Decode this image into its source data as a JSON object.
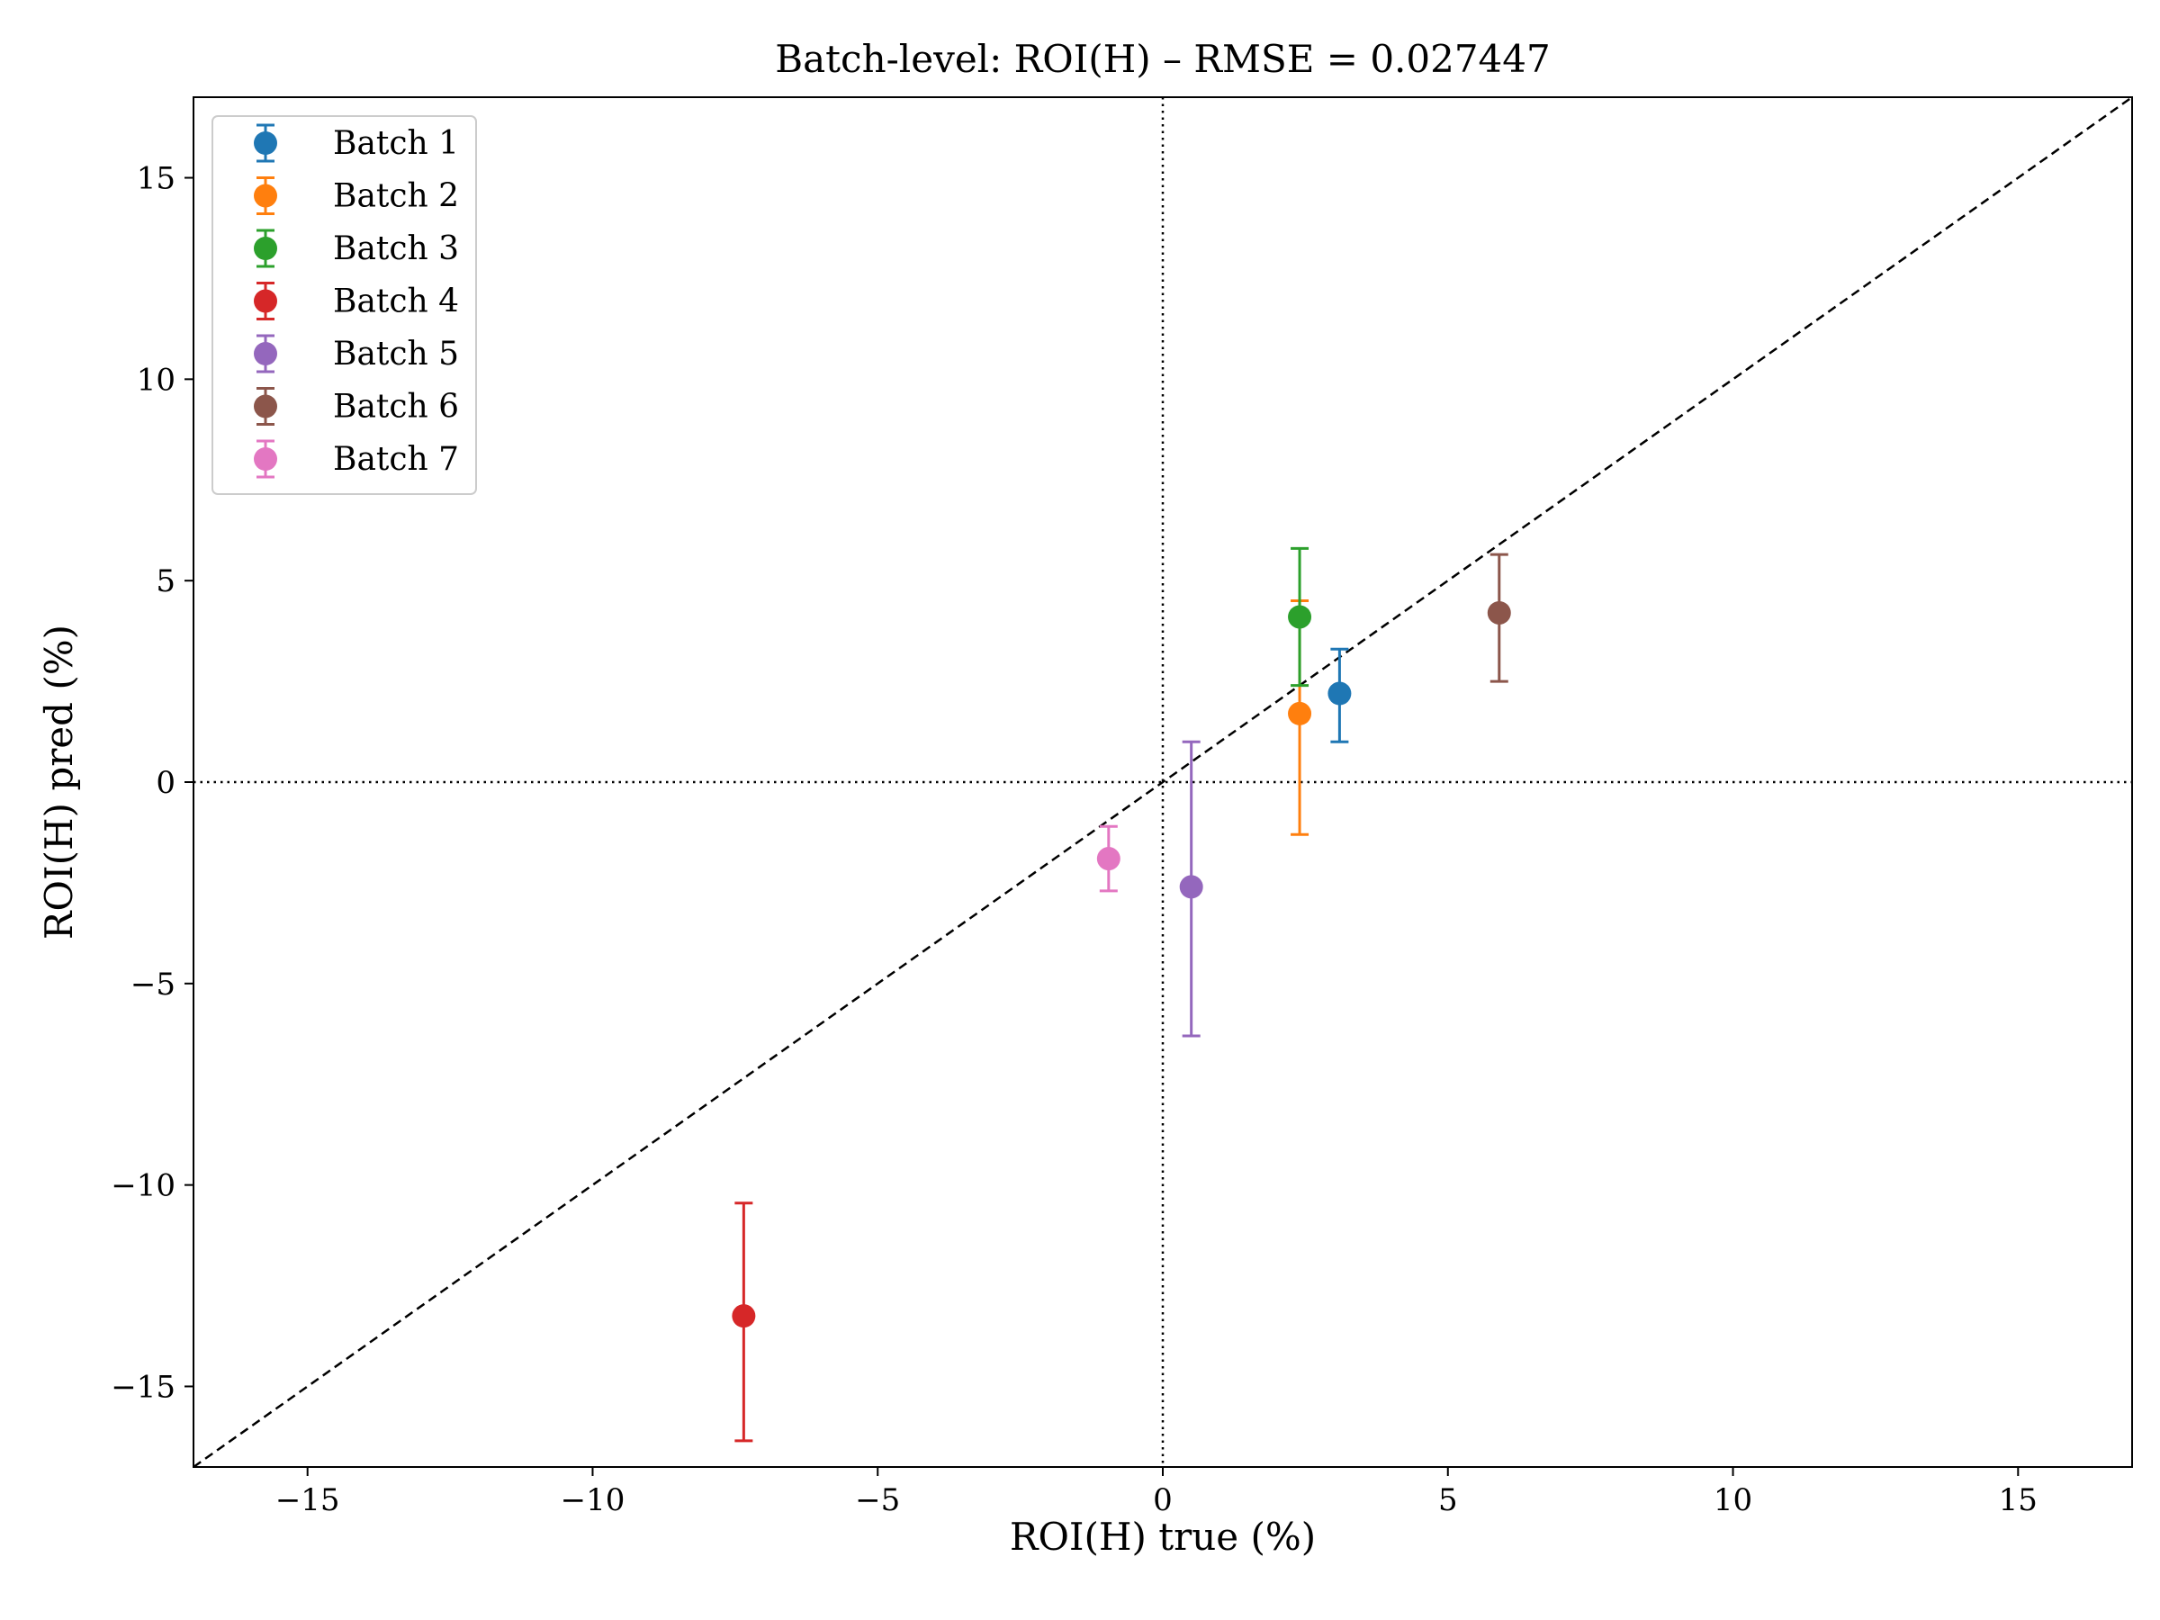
{
  "chart_data": {
    "type": "scatter",
    "title": "Batch-level: ROI(H) – RMSE = 0.027447",
    "xlabel": "ROI(H) true (%)",
    "ylabel": "ROI(H) pred (%)",
    "xlim": [
      -17,
      17
    ],
    "ylim": [
      -17,
      17
    ],
    "xticks": [
      -15,
      -10,
      -5,
      0,
      5,
      10,
      15
    ],
    "yticks": [
      -15,
      -10,
      -5,
      0,
      5,
      10,
      15
    ],
    "xtick_labels": [
      "−15",
      "−10",
      "−5",
      "0",
      "5",
      "10",
      "15"
    ],
    "ytick_labels": [
      "−15",
      "−10",
      "−5",
      "0",
      "5",
      "10",
      "15"
    ],
    "grid": false,
    "legend_position": "top-left",
    "reference_lines": [
      "y = x (dashed)",
      "x = 0 (dotted)",
      "y = 0 (dotted)"
    ],
    "series": [
      {
        "name": "Batch 1",
        "color": "#1f77b4",
        "x": 3.1,
        "y": 2.2,
        "err_low": 1.0,
        "err_high": 3.3
      },
      {
        "name": "Batch 2",
        "color": "#ff7f0e",
        "x": 2.4,
        "y": 1.7,
        "err_low": -1.3,
        "err_high": 4.5
      },
      {
        "name": "Batch 3",
        "color": "#2ca02c",
        "x": 2.4,
        "y": 4.1,
        "err_low": 2.4,
        "err_high": 5.8
      },
      {
        "name": "Batch 4",
        "color": "#d62728",
        "x": -7.35,
        "y": -13.25,
        "err_low": -16.35,
        "err_high": -10.45
      },
      {
        "name": "Batch 5",
        "color": "#9467bd",
        "x": 0.5,
        "y": -2.6,
        "err_low": -6.3,
        "err_high": 1.0
      },
      {
        "name": "Batch 6",
        "color": "#8c564b",
        "x": 5.9,
        "y": 4.2,
        "err_low": 2.5,
        "err_high": 5.65
      },
      {
        "name": "Batch 7",
        "color": "#e377c2",
        "x": -0.95,
        "y": -1.9,
        "err_low": -2.7,
        "err_high": -1.1
      }
    ]
  }
}
